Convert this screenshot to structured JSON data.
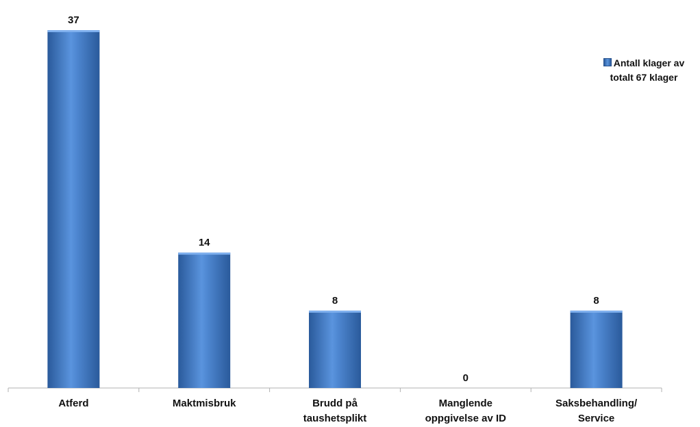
{
  "chart_data": {
    "type": "bar",
    "categories": [
      "Atferd",
      "Maktmisbruk",
      "Brudd på\ntaushetsplikt",
      "Manglende\noppgivelse av ID",
      "Saksbehandling/\nService"
    ],
    "series": [
      {
        "name": "Antall klager av totalt 67 klager",
        "values": [
          37,
          14,
          8,
          0,
          8
        ]
      }
    ],
    "data_labels": [
      "37",
      "14",
      "8",
      "0",
      "8"
    ],
    "ylim": [
      0,
      40
    ],
    "grid": false,
    "legend_position": "top-right",
    "colors": {
      "bar": "#3f78c5",
      "bar_dark": "#2a5a9b",
      "bar_light": "#6ea3e6",
      "axis": "#b0b0b0"
    }
  },
  "legend": {
    "text": "Antall klager av\ntotalt 67 klager"
  }
}
